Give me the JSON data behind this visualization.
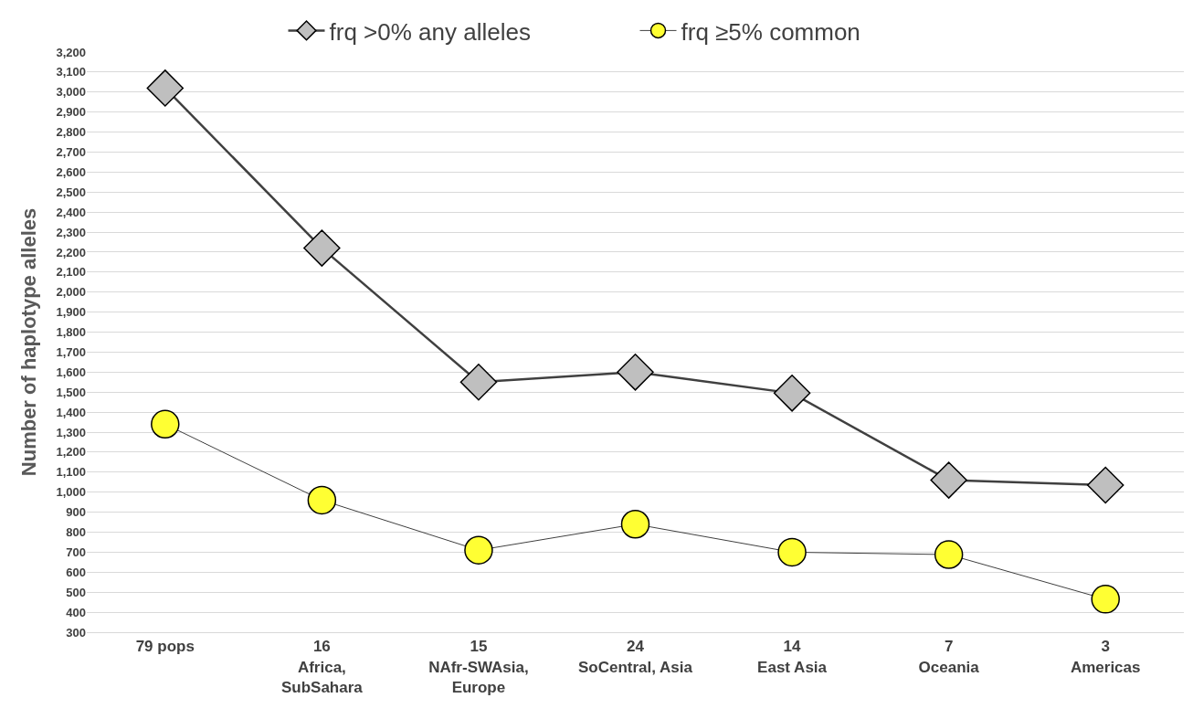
{
  "chart_data": {
    "type": "line",
    "ylabel": "Number of haplotype alleles",
    "categories": [
      "79 pops",
      "16\nAfrica,\nSubSahara",
      "15\nNAfr-SWAsia,\nEurope",
      "24\nSoCentral, Asia",
      "14\nEast Asia",
      "7\nOceania",
      "3\nAmericas"
    ],
    "series": [
      {
        "name": "frq >0% any alleles",
        "color": "#bfbfbf",
        "marker": "diamond",
        "values": [
          3020,
          2220,
          1550,
          1600,
          1495,
          1060,
          1035
        ]
      },
      {
        "name": "frq ≥5% common",
        "color": "#ffff33",
        "marker": "circle",
        "values": [
          1340,
          960,
          710,
          840,
          700,
          688,
          465
        ]
      }
    ],
    "ylim": [
      300,
      3200
    ],
    "yticks": [
      {
        "value": 300,
        "label": "300"
      },
      {
        "value": 400,
        "label": "400"
      },
      {
        "value": 500,
        "label": "500"
      },
      {
        "value": 600,
        "label": "600"
      },
      {
        "value": 700,
        "label": "700"
      },
      {
        "value": 800,
        "label": "800"
      },
      {
        "value": 900,
        "label": "900"
      },
      {
        "value": 1000,
        "label": "1,000"
      },
      {
        "value": 1100,
        "label": "1,100"
      },
      {
        "value": 1200,
        "label": "1,200"
      },
      {
        "value": 1300,
        "label": "1,300"
      },
      {
        "value": 1400,
        "label": "1,400"
      },
      {
        "value": 1500,
        "label": "1,500"
      },
      {
        "value": 1600,
        "label": "1,600"
      },
      {
        "value": 1700,
        "label": "1,700"
      },
      {
        "value": 1800,
        "label": "1,800"
      },
      {
        "value": 1900,
        "label": "1,900"
      },
      {
        "value": 2000,
        "label": "2,000"
      },
      {
        "value": 2100,
        "label": "2,100"
      },
      {
        "value": 2200,
        "label": "2,200"
      },
      {
        "value": 2300,
        "label": "2,300"
      },
      {
        "value": 2400,
        "label": "2,400"
      },
      {
        "value": 2500,
        "label": "2,500"
      },
      {
        "value": 2600,
        "label": "2,600"
      },
      {
        "value": 2700,
        "label": "2,700"
      },
      {
        "value": 2800,
        "label": "2,800"
      },
      {
        "value": 2900,
        "label": "2,900"
      },
      {
        "value": 3000,
        "label": "3,000"
      },
      {
        "value": 3100,
        "label": "3,100"
      },
      {
        "value": 3200,
        "label": "3,200"
      }
    ],
    "grid": "y",
    "legend": "top"
  }
}
